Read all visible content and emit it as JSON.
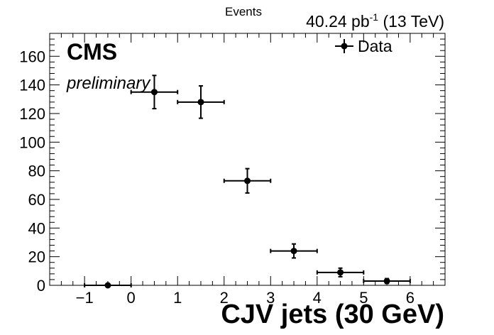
{
  "header": {
    "ylabel": "Events",
    "lumi_value": "40.24 pb",
    "lumi_exp": "-1",
    "lumi_energy": " (13 TeV)"
  },
  "labels": {
    "experiment": "CMS",
    "status": "preliminary"
  },
  "legend": {
    "entry": "Data"
  },
  "chart_data": {
    "type": "scatter",
    "title": "",
    "xlabel": "CJV jets (30 GeV)",
    "ylabel": "Events",
    "xlim": [
      -1.75,
      6.75
    ],
    "ylim": [
      0,
      176
    ],
    "x_ticks": [
      -1,
      0,
      1,
      2,
      3,
      4,
      5,
      6
    ],
    "y_ticks": [
      0,
      20,
      40,
      60,
      80,
      100,
      120,
      140,
      160
    ],
    "grid": false,
    "legend_position": "top-right",
    "series": [
      {
        "name": "Data",
        "points": [
          {
            "x": -0.5,
            "xerr": 0.5,
            "y": 0,
            "yerr": 0
          },
          {
            "x": 0.5,
            "xerr": 0.5,
            "y": 135,
            "yerr": 11.6
          },
          {
            "x": 1.5,
            "xerr": 0.5,
            "y": 128,
            "yerr": 11.3
          },
          {
            "x": 2.5,
            "xerr": 0.5,
            "y": 73,
            "yerr": 8.5
          },
          {
            "x": 3.5,
            "xerr": 0.5,
            "y": 24,
            "yerr": 4.9
          },
          {
            "x": 4.5,
            "xerr": 0.5,
            "y": 9,
            "yerr": 3
          },
          {
            "x": 5.5,
            "xerr": 0.5,
            "y": 3,
            "yerr": 1.7
          }
        ]
      }
    ]
  }
}
